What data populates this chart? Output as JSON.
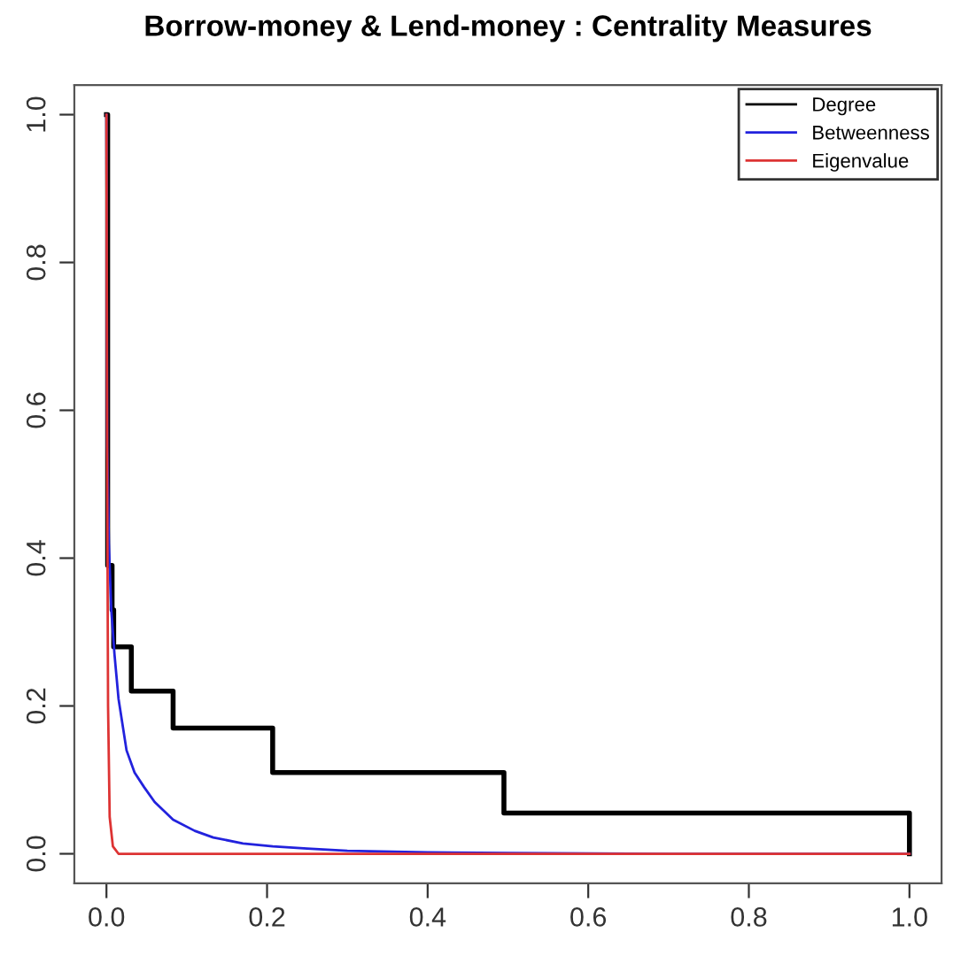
{
  "chart_data": {
    "type": "line",
    "title": "Borrow-money & Lend-money : Centrality Measures",
    "xlim": [
      -0.04,
      1.04
    ],
    "ylim": [
      -0.04,
      1.04
    ],
    "xticks": [
      {
        "value": 0,
        "label": "0.0"
      },
      {
        "value": 0.2,
        "label": "0.2"
      },
      {
        "value": 0.4,
        "label": "0.4"
      },
      {
        "value": 0.6,
        "label": "0.6"
      },
      {
        "value": 0.8,
        "label": "0.8"
      },
      {
        "value": 1,
        "label": "1.0"
      }
    ],
    "yticks": [
      {
        "value": 0,
        "label": "0.0"
      },
      {
        "value": 0.2,
        "label": "0.2"
      },
      {
        "value": 0.4,
        "label": "0.4"
      },
      {
        "value": 0.6,
        "label": "0.6"
      },
      {
        "value": 0.8,
        "label": "0.8"
      },
      {
        "value": 1,
        "label": "1.0"
      }
    ],
    "grid": false,
    "legend": "top right",
    "marker": "none",
    "line_style": "solid",
    "series": [
      {
        "name": "Degree",
        "type": "step",
        "color": "#000000",
        "x": [
          0,
          0.0015,
          0.007,
          0.009,
          0.031,
          0.083,
          0.207,
          0.495,
          1.0
        ],
        "values": [
          1.0,
          0.39,
          0.33,
          0.28,
          0.22,
          0.17,
          0.11,
          0.055,
          0
        ]
      },
      {
        "name": "Betweenness",
        "color": "#2222dd",
        "x": [
          0,
          0.001,
          0.003,
          0.006,
          0.01,
          0.015,
          0.025,
          0.035,
          0.047,
          0.06,
          0.083,
          0.11,
          0.133,
          0.17,
          0.207,
          0.25,
          0.3,
          0.4,
          0.5,
          0.7,
          1.0
        ],
        "values": [
          1.0,
          0.55,
          0.42,
          0.33,
          0.27,
          0.21,
          0.14,
          0.11,
          0.09,
          0.07,
          0.046,
          0.031,
          0.022,
          0.014,
          0.01,
          0.007,
          0.004,
          0.002,
          0.001,
          0,
          0
        ]
      },
      {
        "name": "Eigenvalue",
        "color": "#dd3333",
        "x": [
          0,
          0.001,
          0.002,
          0.004,
          0.008,
          0.015,
          1.0
        ],
        "values": [
          1.0,
          0.5,
          0.2,
          0.05,
          0.01,
          0,
          0
        ]
      }
    ]
  }
}
